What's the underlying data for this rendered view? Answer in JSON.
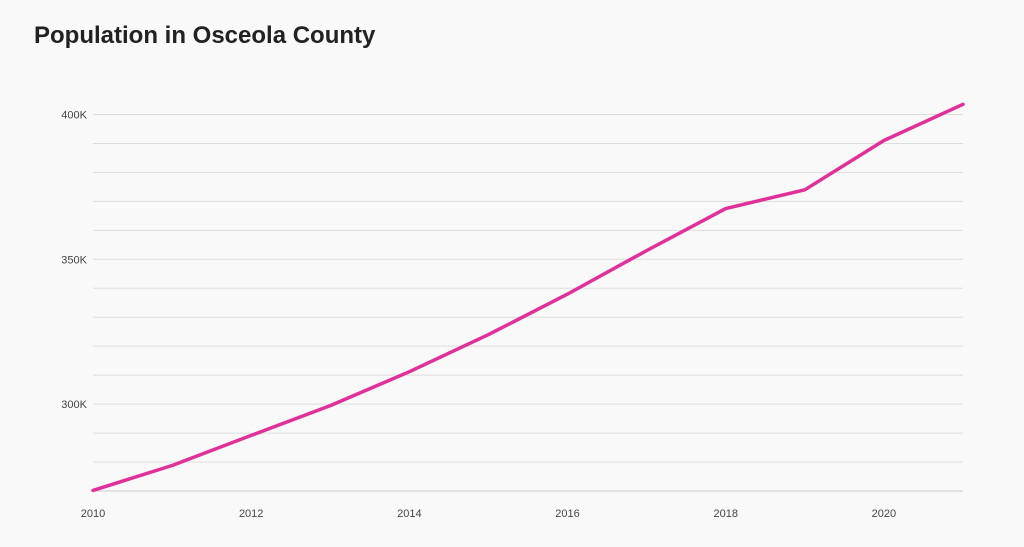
{
  "chart_data": {
    "type": "line",
    "title": "Population in Osceola County",
    "xlabel": "",
    "ylabel": "",
    "x": [
      2010,
      2011,
      2012,
      2013,
      2014,
      2015,
      2016,
      2017,
      2018,
      2019,
      2020,
      2021
    ],
    "series": [
      {
        "values": [
          270200,
          278800,
          289200,
          299500,
          311200,
          324000,
          338000,
          353000,
          367500,
          374000,
          391000,
          403500
        ]
      }
    ],
    "xlim": [
      2010,
      2021
    ],
    "ylim": [
      270000,
      405000
    ],
    "x_ticks": [
      2010,
      2012,
      2014,
      2016,
      2018,
      2020
    ],
    "x_tick_labels": [
      "2010",
      "2012",
      "2014",
      "2016",
      "2018",
      "2020"
    ],
    "y_ticks": [
      300000,
      350000,
      400000
    ],
    "y_tick_labels": [
      "300K",
      "350K",
      "400K"
    ],
    "grid": true,
    "grid_step": 10000,
    "line_color": "#e0309a",
    "grid_color": "#dddddd",
    "axis_color": "#cccccc"
  }
}
